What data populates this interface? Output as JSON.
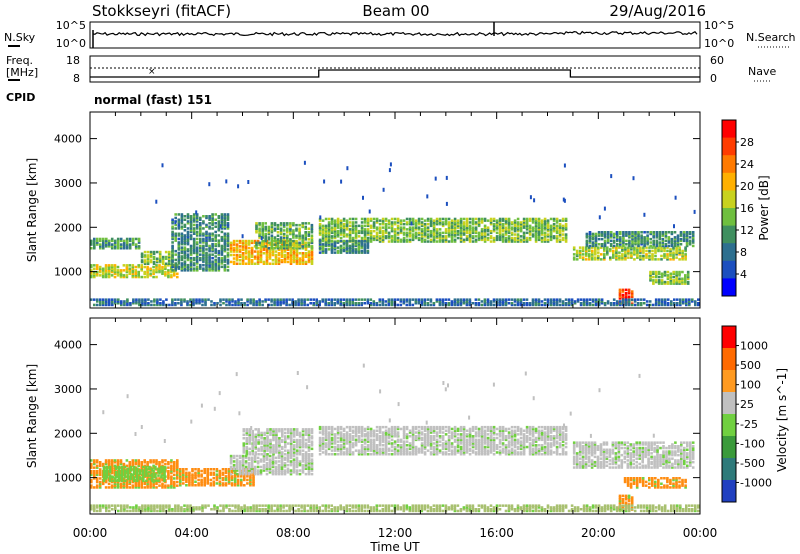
{
  "header": {
    "station": "Stokkseyri (fitACF)",
    "beam": "Beam 00",
    "date": "29/Aug/2016"
  },
  "noise_panel": {
    "left_label": "N.Sky",
    "right_label": "N.Search",
    "left_ticks": [
      "10^5",
      "10^0"
    ],
    "right_ticks": [
      "10^5",
      "10^0"
    ]
  },
  "freq_panel": {
    "left_label_1": "Freq.",
    "left_label_2": "[MHz]",
    "right_label": "Nave",
    "left_ticks": [
      "18",
      "8"
    ],
    "right_ticks": [
      "60",
      "0"
    ]
  },
  "cpid": {
    "label": "CPID",
    "value": "normal (fast) 151"
  },
  "chart_data": [
    {
      "type": "heatmap",
      "name": "power",
      "ylabel": "Slant Range [km]",
      "ylim": [
        180,
        4600
      ],
      "yticks": [
        1000,
        2000,
        3000,
        4000
      ],
      "xlabel": "Time UT",
      "xlim": [
        0,
        24
      ],
      "xticks": [
        "00:00",
        "04:00",
        "08:00",
        "12:00",
        "16:00",
        "20:00",
        "00:00"
      ],
      "colorbar": {
        "label": "Power [dB]",
        "ticks": [
          "28",
          "24",
          "20",
          "16",
          "12",
          "8",
          "4"
        ],
        "colors": [
          "#0000ff",
          "#1c4fbf",
          "#2d6f8f",
          "#3f8f5f",
          "#6fbf3f",
          "#c8d21e",
          "#ffb000",
          "#ff7a00",
          "#ff3c00",
          "#ff0000"
        ]
      },
      "bands": [
        {
          "t0": 0.0,
          "t1": 3.5,
          "r0": 850,
          "r1": 1150,
          "level": 0.55
        },
        {
          "t0": 0.0,
          "t1": 2.0,
          "r0": 1500,
          "r1": 1750,
          "level": 0.35
        },
        {
          "t0": 2.0,
          "t1": 3.3,
          "r0": 1150,
          "r1": 1450,
          "level": 0.45
        },
        {
          "t0": 3.2,
          "t1": 5.5,
          "r0": 1000,
          "r1": 2300,
          "level": 0.3
        },
        {
          "t0": 5.5,
          "t1": 8.8,
          "r0": 1150,
          "r1": 1700,
          "level": 0.65
        },
        {
          "t0": 6.5,
          "t1": 8.8,
          "r0": 1500,
          "r1": 2100,
          "level": 0.4
        },
        {
          "t0": 9.0,
          "t1": 18.8,
          "r0": 1650,
          "r1": 2200,
          "level": 0.45
        },
        {
          "t0": 9.0,
          "t1": 11.0,
          "r0": 1400,
          "r1": 1700,
          "level": 0.3
        },
        {
          "t0": 19.0,
          "t1": 23.5,
          "r0": 1250,
          "r1": 1550,
          "level": 0.5
        },
        {
          "t0": 19.5,
          "t1": 23.8,
          "r0": 1550,
          "r1": 1900,
          "level": 0.3
        },
        {
          "t0": 22.0,
          "t1": 23.6,
          "r0": 700,
          "r1": 1000,
          "level": 0.45
        },
        {
          "t0": 20.8,
          "t1": 21.4,
          "r0": 250,
          "r1": 600,
          "level": 0.9
        },
        {
          "t0": 0.0,
          "t1": 24.0,
          "r0": 220,
          "r1": 380,
          "level": 0.2
        }
      ]
    },
    {
      "type": "heatmap",
      "name": "velocity",
      "ylabel": "Slant Range [km]",
      "ylim": [
        180,
        4600
      ],
      "yticks": [
        1000,
        2000,
        3000,
        4000
      ],
      "xlabel": "Time UT",
      "xlim": [
        0,
        24
      ],
      "xticks": [
        "00:00",
        "04:00",
        "08:00",
        "12:00",
        "16:00",
        "20:00",
        "00:00"
      ],
      "colorbar": {
        "label": "Velocity [m s^-1]",
        "ticks": [
          "1000",
          "500",
          "100",
          "25",
          "-25",
          "-100",
          "-500",
          "-1000"
        ],
        "colors": [
          "#2040c0",
          "#2e7a7a",
          "#3a9a3a",
          "#70d040",
          "#c0c0c0",
          "#ff9a20",
          "#ff6a00",
          "#ff0000"
        ]
      },
      "bands": [
        {
          "t0": 0.0,
          "t1": 3.5,
          "r0": 750,
          "r1": 1400,
          "color": "#ff8c10"
        },
        {
          "t0": 0.5,
          "t1": 3.0,
          "r0": 900,
          "r1": 1250,
          "color": "#70d040"
        },
        {
          "t0": 3.5,
          "t1": 6.5,
          "r0": 800,
          "r1": 1200,
          "color": "#ff8c10"
        },
        {
          "t0": 5.5,
          "t1": 8.8,
          "r0": 1050,
          "r1": 1500,
          "color": "#c0c0c0"
        },
        {
          "t0": 6.0,
          "t1": 8.8,
          "r0": 1500,
          "r1": 2100,
          "color": "#c0c0c0"
        },
        {
          "t0": 9.0,
          "t1": 18.8,
          "r0": 1500,
          "r1": 2150,
          "color": "#c0c0c0"
        },
        {
          "t0": 19.0,
          "t1": 23.8,
          "r0": 1200,
          "r1": 1800,
          "color": "#c0c0c0"
        },
        {
          "t0": 21.0,
          "t1": 23.5,
          "r0": 750,
          "r1": 1000,
          "color": "#ff8c10"
        },
        {
          "t0": 20.8,
          "t1": 21.4,
          "r0": 250,
          "r1": 600,
          "color": "#ff8c10"
        },
        {
          "t0": 0.0,
          "t1": 24.0,
          "r0": 220,
          "r1": 380,
          "color": "#a8c070"
        }
      ]
    }
  ]
}
